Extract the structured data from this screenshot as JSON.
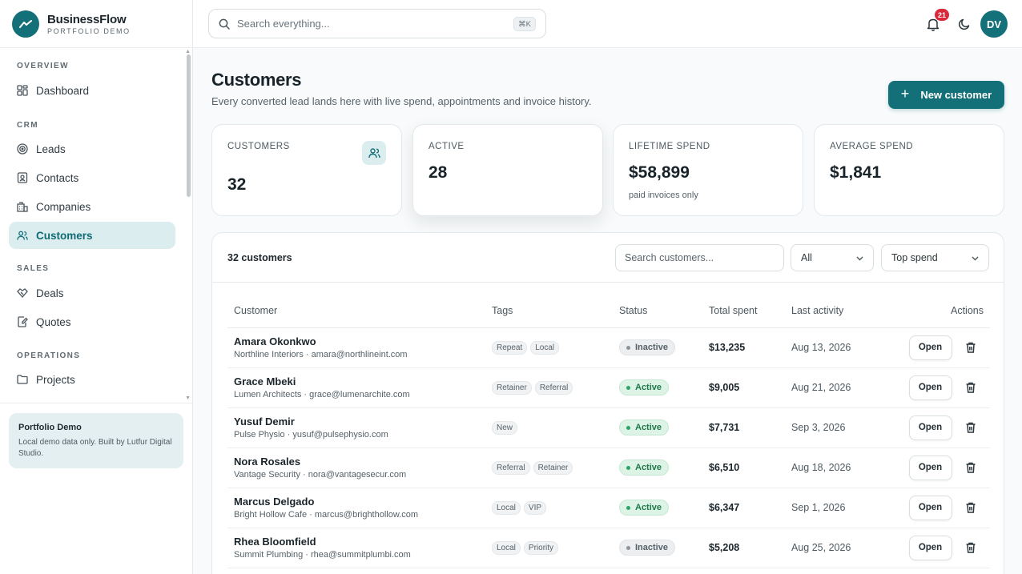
{
  "brand": {
    "name": "BusinessFlow",
    "subtitle": "PORTFOLIO DEMO",
    "logo_icon": "trend-line-icon"
  },
  "sidebar": {
    "sections": [
      {
        "label": "OVERVIEW",
        "items": [
          {
            "label": "Dashboard",
            "icon": "grid-icon"
          }
        ]
      },
      {
        "label": "CRM",
        "items": [
          {
            "label": "Leads",
            "icon": "target-icon"
          },
          {
            "label": "Contacts",
            "icon": "contact-card-icon"
          },
          {
            "label": "Companies",
            "icon": "building-icon"
          },
          {
            "label": "Customers",
            "icon": "users-icon",
            "active": true
          }
        ]
      },
      {
        "label": "SALES",
        "items": [
          {
            "label": "Deals",
            "icon": "handshake-icon"
          },
          {
            "label": "Quotes",
            "icon": "document-edit-icon"
          }
        ]
      },
      {
        "label": "OPERATIONS",
        "items": [
          {
            "label": "Projects",
            "icon": "folder-icon"
          }
        ]
      }
    ],
    "demo_card": {
      "title": "Portfolio Demo",
      "text": "Local demo data only. Built by Lutfur Digital Studio."
    }
  },
  "topbar": {
    "search_placeholder": "Search everything...",
    "shortcut": "⌘K",
    "notifications_count": "21",
    "avatar_initials": "DV"
  },
  "page": {
    "title": "Customers",
    "subtitle": "Every converted lead lands here with live spend, appointments and invoice history.",
    "new_button": "New customer"
  },
  "stats": [
    {
      "label": "CUSTOMERS",
      "value": "32",
      "note": ""
    },
    {
      "label": "ACTIVE",
      "value": "28",
      "note": ""
    },
    {
      "label": "LIFETIME SPEND",
      "value": "$58,899",
      "note": "paid invoices only"
    },
    {
      "label": "AVERAGE SPEND",
      "value": "$1,841",
      "note": ""
    }
  ],
  "table": {
    "count_label": "32 customers",
    "search_placeholder": "Search customers...",
    "filter_status": "All",
    "sort": "Top spend",
    "columns": [
      "Customer",
      "Tags",
      "Status",
      "Total spent",
      "Last activity",
      "Actions"
    ],
    "open_label": "Open",
    "rows": [
      {
        "name": "Amara Okonkwo",
        "sub": "Northline Interiors · amara@northlineint.com",
        "tags": [
          "Repeat",
          "Local"
        ],
        "status": "Inactive",
        "total": "$13,235",
        "last": "Aug 13, 2026"
      },
      {
        "name": "Grace Mbeki",
        "sub": "Lumen Architects · grace@lumenarchite.com",
        "tags": [
          "Retainer",
          "Referral"
        ],
        "status": "Active",
        "total": "$9,005",
        "last": "Aug 21, 2026"
      },
      {
        "name": "Yusuf Demir",
        "sub": "Pulse Physio · yusuf@pulsephysio.com",
        "tags": [
          "New"
        ],
        "status": "Active",
        "total": "$7,731",
        "last": "Sep 3, 2026"
      },
      {
        "name": "Nora Rosales",
        "sub": "Vantage Security · nora@vantagesecur.com",
        "tags": [
          "Referral",
          "Retainer"
        ],
        "status": "Active",
        "total": "$6,510",
        "last": "Aug 18, 2026"
      },
      {
        "name": "Marcus Delgado",
        "sub": "Bright Hollow Cafe · marcus@brighthollow.com",
        "tags": [
          "Local",
          "VIP"
        ],
        "status": "Active",
        "total": "$6,347",
        "last": "Sep 1, 2026"
      },
      {
        "name": "Rhea Bloomfield",
        "sub": "Summit Plumbing · rhea@summitplumbi.com",
        "tags": [
          "Local",
          "Priority"
        ],
        "status": "Inactive",
        "total": "$5,208",
        "last": "Aug 25, 2026"
      }
    ]
  },
  "colors": {
    "accent": "#137078",
    "accent_soft": "#dcedf0",
    "active_green": "#1f7a4a",
    "badge_red": "#d9293a"
  }
}
